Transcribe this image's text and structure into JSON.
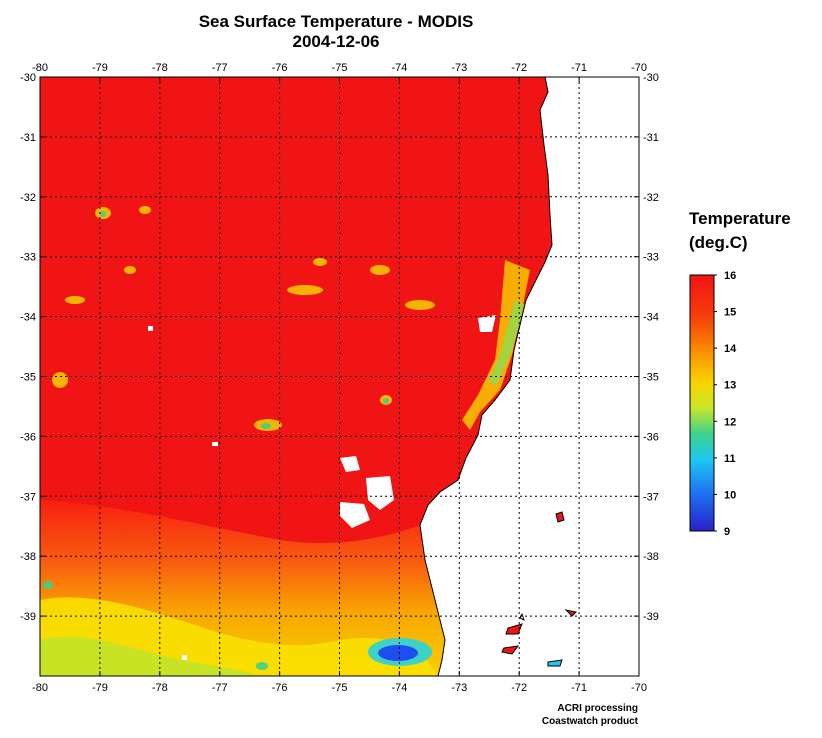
{
  "title": "Sea Surface Temperature - MODIS",
  "date": "2004-12-06",
  "colorbar": {
    "title_line1": "Temperature",
    "title_line2": "(deg.C)",
    "min": 9,
    "max": 16,
    "tick_labels": [
      "16",
      "15",
      "14",
      "13",
      "12",
      "11",
      "10",
      "9"
    ],
    "colors": [
      "#2a1fc8",
      "#1f6ef0",
      "#1ec8f0",
      "#3cd28c",
      "#b4e632",
      "#f8f000",
      "#f8a800",
      "#f85000",
      "#f01414"
    ]
  },
  "axes": {
    "lon_labels": [
      "-80",
      "-79",
      "-78",
      "-77",
      "-76",
      "-75",
      "-74",
      "-73",
      "-72",
      "-71",
      "-70"
    ],
    "lat_labels": [
      "-30",
      "-31",
      "-32",
      "-33",
      "-34",
      "-35",
      "-36",
      "-37",
      "-38",
      "-39"
    ]
  },
  "credits": {
    "line1": "ACRI processing",
    "line2": "Coastwatch product"
  }
}
